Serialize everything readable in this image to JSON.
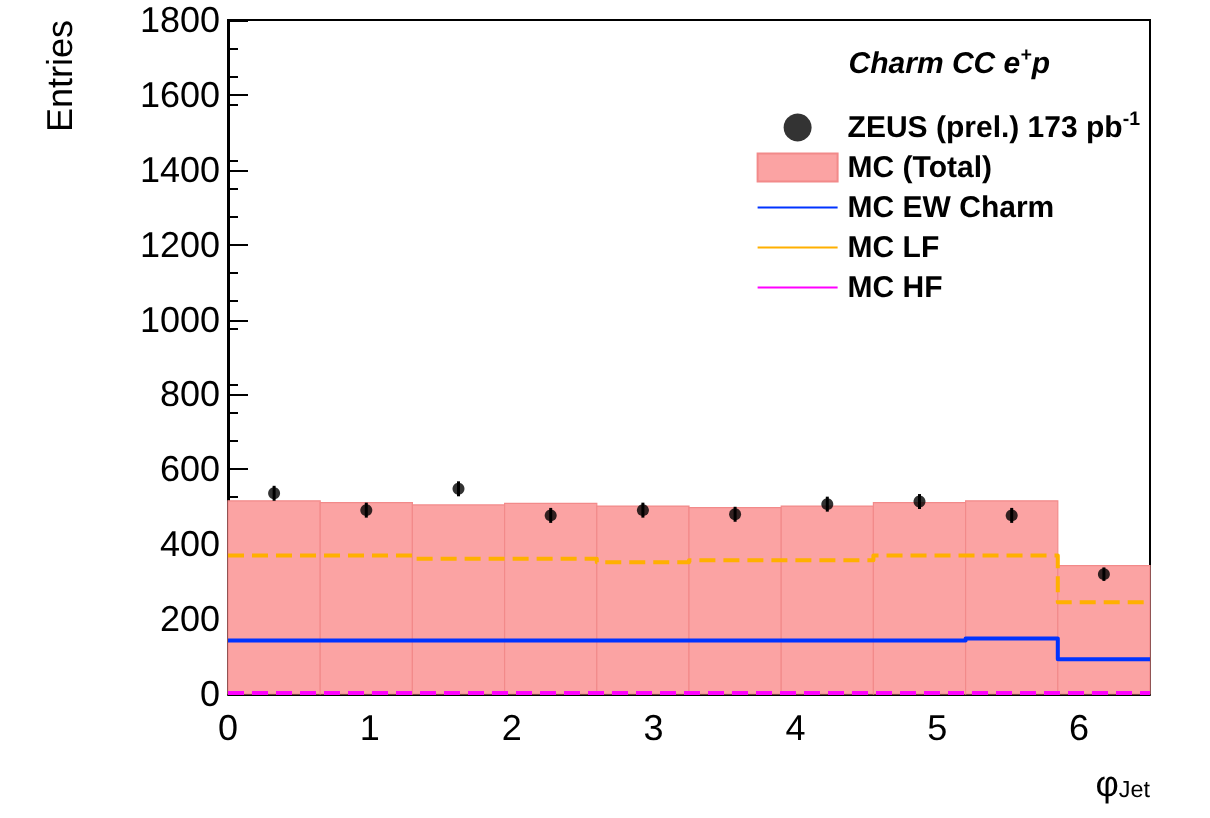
{
  "chart_data": {
    "type": "histogram",
    "xlabel": "φ$_{Jet}$",
    "ylabel": "Entries",
    "legend_title": "Charm CC e$^{+}$p",
    "bins": [
      0,
      0.65,
      1.3,
      1.95,
      2.6,
      3.25,
      3.9,
      4.55,
      5.2,
      5.85,
      6.5
    ],
    "series": [
      {
        "name": "ZEUS (prel.) 173 pb$^{-1}$",
        "type": "scatter",
        "color": "#000000",
        "x": [
          0.325,
          0.975,
          1.625,
          2.275,
          2.925,
          3.575,
          4.225,
          4.875,
          5.525,
          6.175
        ],
        "values": [
          536,
          491,
          548,
          477,
          491,
          480,
          507,
          514,
          477,
          320
        ],
        "errors": [
          20,
          20,
          20,
          20,
          20,
          20,
          20,
          20,
          20,
          18
        ]
      },
      {
        "name": "MC (Total)",
        "color": "#fba3a3",
        "values": [
          516,
          511,
          505,
          509,
          502,
          498,
          502,
          511,
          516,
          343
        ]
      },
      {
        "name": "MC EW Charm",
        "color": "#0033ff",
        "line_style": "solid",
        "values": [
          143,
          143,
          143,
          143,
          143,
          143,
          143,
          143,
          148,
          93
        ]
      },
      {
        "name": "MC LF",
        "color": "#ffb000",
        "line_style": "dashed",
        "values": [
          370,
          370,
          361,
          361,
          352,
          357,
          357,
          370,
          370,
          245
        ]
      },
      {
        "name": "MC HF",
        "color": "#ff00ff",
        "line_style": "dashed",
        "values": [
          3,
          3,
          3,
          3,
          3,
          3,
          3,
          3,
          3,
          3
        ]
      }
    ],
    "xlim": [
      0,
      6.5
    ],
    "xticks": [
      0,
      1,
      2,
      3,
      4,
      5,
      6
    ],
    "ylim": [
      0,
      1800
    ],
    "yticks": [
      0,
      200,
      400,
      600,
      800,
      1000,
      1200,
      1400,
      1600,
      1800
    ],
    "grid": false,
    "legend": "top right",
    "marker": "circle"
  }
}
